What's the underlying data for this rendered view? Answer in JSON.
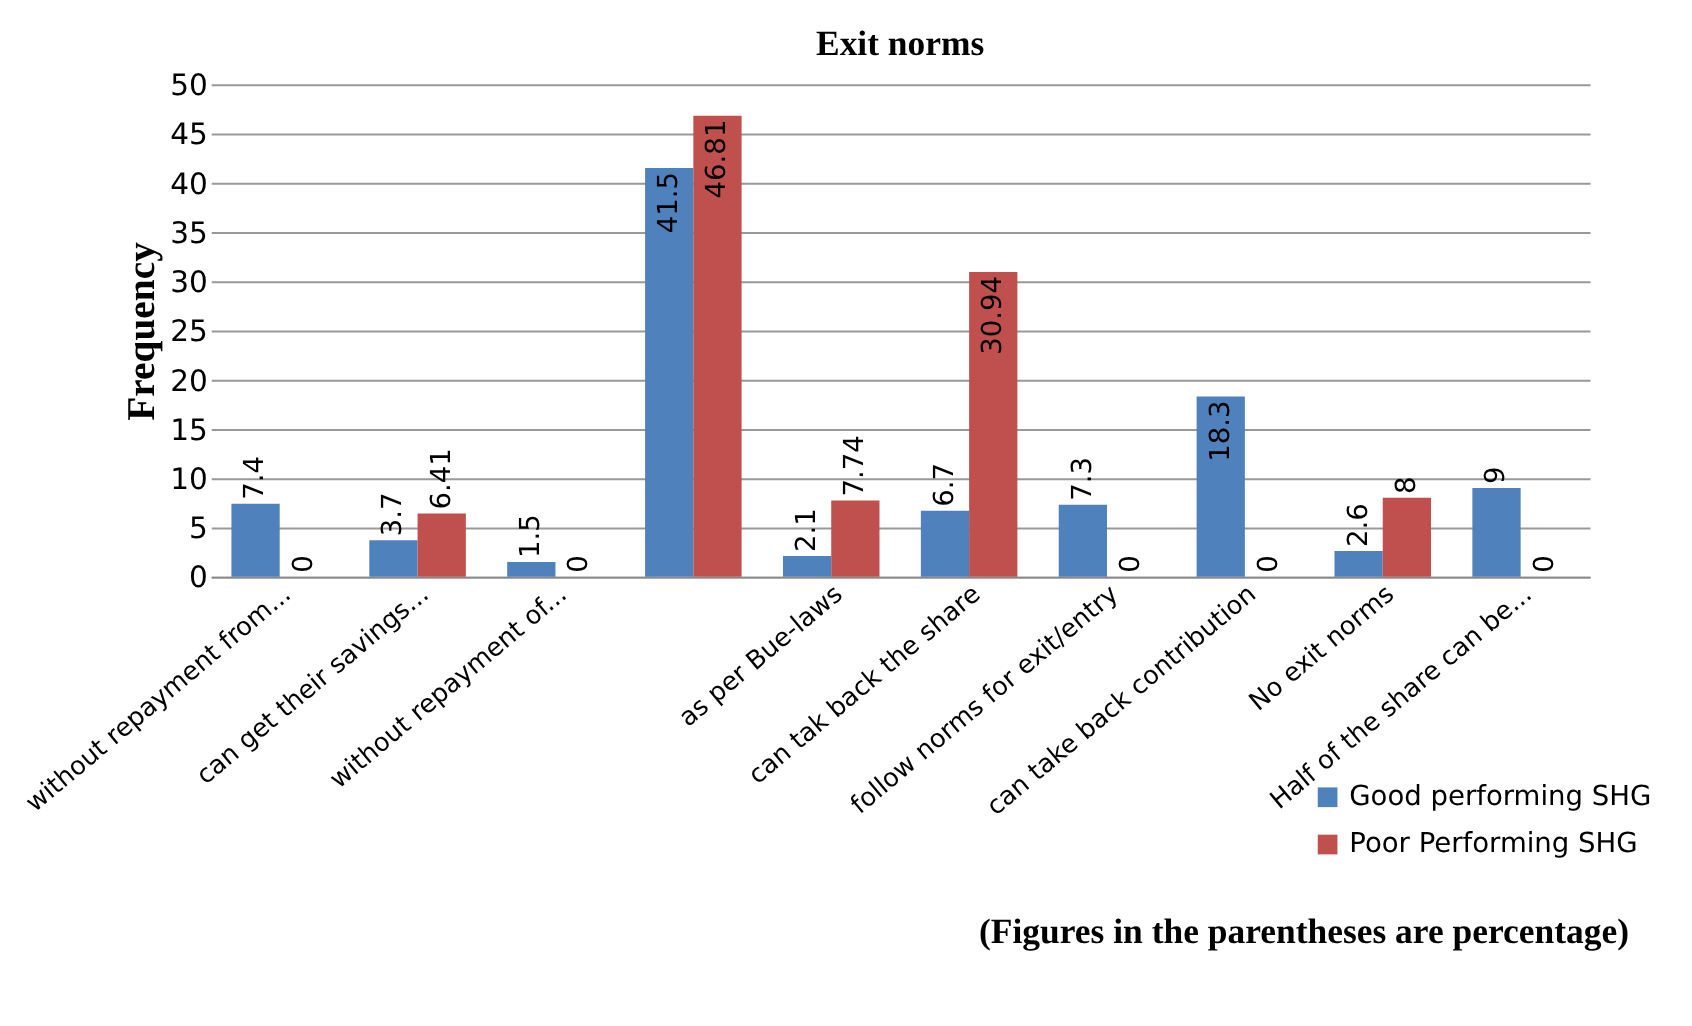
{
  "chart_data": {
    "type": "bar",
    "title": "Exit norms",
    "ylabel": "Frequency",
    "categories": [
      "without repayment from...",
      "can get their savings...",
      "without repayment of...",
      null,
      "as per Bue-laws",
      "can tak back the share",
      "follow norms for exit/entry",
      "can take back contribution",
      "No exit norms",
      "Half of the share can be..."
    ],
    "series": [
      {
        "name": "Good performing SHG",
        "color": "#4f81bd",
        "values": [
          7.4,
          3.7,
          1.5,
          41.5,
          2.1,
          6.7,
          7.3,
          18.3,
          2.6,
          9
        ]
      },
      {
        "name": "Poor Performing SHG",
        "color": "#c0504d",
        "values": [
          0,
          6.41,
          0,
          46.81,
          7.74,
          30.94,
          0,
          0,
          8,
          0
        ]
      }
    ],
    "ylim": [
      0,
      50
    ],
    "yticks": [
      0,
      5,
      10,
      15,
      20,
      25,
      30,
      35,
      40,
      45,
      50
    ],
    "grid": "y",
    "legend": "bottom right",
    "data_labels": true,
    "annotations": [
      "(Figures in the parentheses are percentage)"
    ]
  }
}
